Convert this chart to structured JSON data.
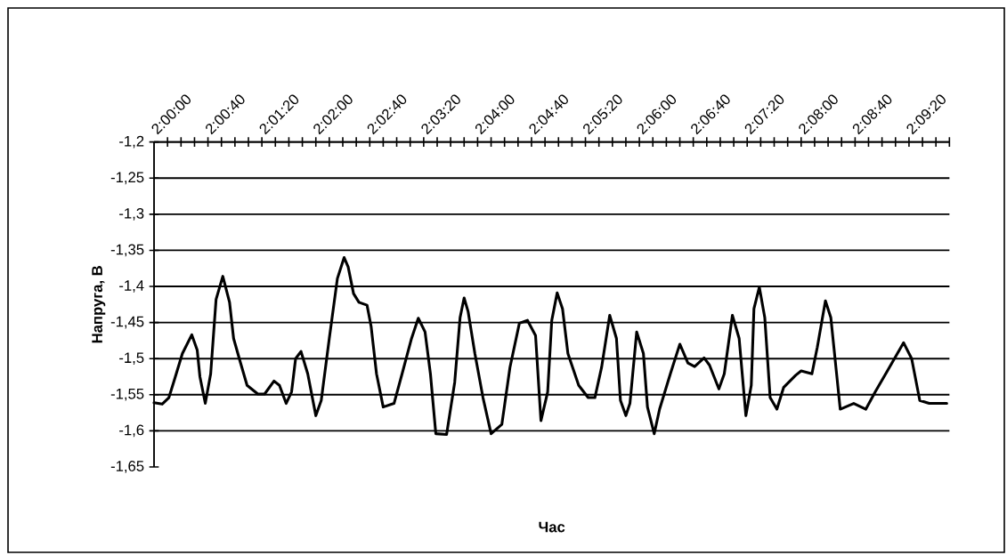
{
  "chart_data": {
    "type": "line",
    "xlabel": "Час",
    "ylabel": "Напруга, В",
    "xlim": [
      1.99722,
      2.16111
    ],
    "ylim": [
      -1.65,
      -1.2
    ],
    "xticks": [
      {
        "value": 2,
        "label": "2:00:00"
      },
      {
        "value": 2.00278,
        "label": null
      },
      {
        "value": 2.00556,
        "label": null
      },
      {
        "value": 2.00833,
        "label": null
      },
      {
        "value": 2.01111,
        "label": "2:00:40"
      },
      {
        "value": 2.01389,
        "label": null
      },
      {
        "value": 2.01667,
        "label": null
      },
      {
        "value": 2.01944,
        "label": null
      },
      {
        "value": 2.02222,
        "label": "2:01:20"
      },
      {
        "value": 2.025,
        "label": null
      },
      {
        "value": 2.02778,
        "label": null
      },
      {
        "value": 2.03056,
        "label": null
      },
      {
        "value": 2.03333,
        "label": "2:02:00"
      },
      {
        "value": 2.03611,
        "label": null
      },
      {
        "value": 2.03889,
        "label": null
      },
      {
        "value": 2.04167,
        "label": null
      },
      {
        "value": 2.04444,
        "label": "2:02:40"
      },
      {
        "value": 2.04722,
        "label": null
      },
      {
        "value": 2.05,
        "label": null
      },
      {
        "value": 2.05278,
        "label": null
      },
      {
        "value": 2.05556,
        "label": "2:03:20"
      },
      {
        "value": 2.05833,
        "label": null
      },
      {
        "value": 2.06111,
        "label": null
      },
      {
        "value": 2.06389,
        "label": null
      },
      {
        "value": 2.06667,
        "label": "2:04:00"
      },
      {
        "value": 2.06944,
        "label": null
      },
      {
        "value": 2.07222,
        "label": null
      },
      {
        "value": 2.075,
        "label": null
      },
      {
        "value": 2.07778,
        "label": "2:04:40"
      },
      {
        "value": 2.08056,
        "label": null
      },
      {
        "value": 2.08333,
        "label": null
      },
      {
        "value": 2.08611,
        "label": null
      },
      {
        "value": 2.08889,
        "label": "2:05:20"
      },
      {
        "value": 2.09167,
        "label": null
      },
      {
        "value": 2.09444,
        "label": null
      },
      {
        "value": 2.09722,
        "label": null
      },
      {
        "value": 2.1,
        "label": "2:06:00"
      },
      {
        "value": 2.10278,
        "label": null
      },
      {
        "value": 2.10556,
        "label": null
      },
      {
        "value": 2.10833,
        "label": null
      },
      {
        "value": 2.11111,
        "label": "2:06:40"
      },
      {
        "value": 2.11389,
        "label": null
      },
      {
        "value": 2.11667,
        "label": null
      },
      {
        "value": 2.11944,
        "label": null
      },
      {
        "value": 2.12222,
        "label": "2:07:20"
      },
      {
        "value": 2.125,
        "label": null
      },
      {
        "value": 2.12778,
        "label": null
      },
      {
        "value": 2.13056,
        "label": null
      },
      {
        "value": 2.13333,
        "label": "2:08:00"
      },
      {
        "value": 2.13611,
        "label": null
      },
      {
        "value": 2.13889,
        "label": null
      },
      {
        "value": 2.14167,
        "label": null
      },
      {
        "value": 2.14444,
        "label": "2:08:40"
      },
      {
        "value": 2.14722,
        "label": null
      },
      {
        "value": 2.15,
        "label": null
      },
      {
        "value": 2.15278,
        "label": null
      },
      {
        "value": 2.15556,
        "label": "2:09:20"
      },
      {
        "value": 2.15833,
        "label": null
      },
      {
        "value": 2.16111,
        "label": null
      }
    ],
    "yticks": [
      {
        "value": -1.2,
        "label": "-1,2"
      },
      {
        "value": -1.25,
        "label": "-1,25"
      },
      {
        "value": -1.3,
        "label": "-1,3"
      },
      {
        "value": -1.35,
        "label": "-1,35"
      },
      {
        "value": -1.4,
        "label": "-1,4"
      },
      {
        "value": -1.45,
        "label": "-1,45"
      },
      {
        "value": -1.5,
        "label": "-1,5"
      },
      {
        "value": -1.55,
        "label": "-1,55"
      },
      {
        "value": -1.6,
        "label": "-1,6"
      },
      {
        "value": -1.65,
        "label": "-1,65"
      }
    ],
    "grid": "y",
    "marker": "none",
    "line_style": "solid",
    "x": [
      1.99722,
      1.99889,
      2.00028,
      2.00139,
      2.00306,
      2.005,
      2.00611,
      2.00667,
      2.00778,
      2.00889,
      2.01,
      2.01139,
      2.01278,
      2.01361,
      2.015,
      2.01639,
      2.01861,
      2.02,
      2.02194,
      2.02306,
      2.02444,
      2.02556,
      2.02639,
      2.0275,
      2.02889,
      2.03056,
      2.03167,
      2.03333,
      2.035,
      2.03639,
      2.03722,
      2.03833,
      2.03944,
      2.04111,
      2.04194,
      2.04306,
      2.04444,
      2.04667,
      2.04833,
      2.05028,
      2.05167,
      2.05306,
      2.05417,
      2.05528,
      2.0575,
      2.05917,
      2.06028,
      2.06111,
      2.06194,
      2.06333,
      2.065,
      2.06667,
      2.06889,
      2.07056,
      2.0725,
      2.07417,
      2.07583,
      2.07694,
      2.07833,
      2.07917,
      2.08028,
      2.08139,
      2.0825,
      2.08472,
      2.08667,
      2.08806,
      2.08944,
      2.09111,
      2.0925,
      2.09333,
      2.09444,
      2.09528,
      2.09667,
      2.09806,
      2.09889,
      2.10028,
      2.10139,
      2.10361,
      2.10556,
      2.10722,
      2.10861,
      2.11056,
      2.11167,
      2.11361,
      2.11472,
      2.11639,
      2.11778,
      2.11917,
      2.12028,
      2.12083,
      2.12194,
      2.12306,
      2.12417,
      2.12556,
      2.12694,
      2.12944,
      2.13056,
      2.13278,
      2.13389,
      2.13556,
      2.13667,
      2.13861,
      2.14139,
      2.14389,
      2.14583,
      2.14833,
      2.15167,
      2.15333,
      2.155,
      2.15694,
      2.16056
    ],
    "series": [
      {
        "color": "#000000",
        "values": [
          -1.561,
          -1.563,
          -1.554,
          -1.53,
          -1.493,
          -1.467,
          -1.488,
          -1.525,
          -1.562,
          -1.521,
          -1.418,
          -1.386,
          -1.422,
          -1.472,
          -1.505,
          -1.537,
          -1.549,
          -1.549,
          -1.531,
          -1.537,
          -1.562,
          -1.546,
          -1.5,
          -1.49,
          -1.521,
          -1.579,
          -1.558,
          -1.472,
          -1.389,
          -1.36,
          -1.373,
          -1.41,
          -1.422,
          -1.426,
          -1.455,
          -1.521,
          -1.567,
          -1.562,
          -1.521,
          -1.472,
          -1.444,
          -1.463,
          -1.521,
          -1.604,
          -1.605,
          -1.533,
          -1.443,
          -1.416,
          -1.435,
          -1.493,
          -1.554,
          -1.604,
          -1.591,
          -1.512,
          -1.451,
          -1.447,
          -1.468,
          -1.586,
          -1.546,
          -1.447,
          -1.409,
          -1.431,
          -1.493,
          -1.537,
          -1.554,
          -1.554,
          -1.512,
          -1.44,
          -1.472,
          -1.558,
          -1.579,
          -1.562,
          -1.463,
          -1.493,
          -1.567,
          -1.604,
          -1.57,
          -1.521,
          -1.48,
          -1.506,
          -1.511,
          -1.499,
          -1.509,
          -1.542,
          -1.521,
          -1.44,
          -1.472,
          -1.579,
          -1.537,
          -1.431,
          -1.401,
          -1.443,
          -1.554,
          -1.57,
          -1.54,
          -1.523,
          -1.517,
          -1.521,
          -1.484,
          -1.42,
          -1.443,
          -1.57,
          -1.562,
          -1.57,
          -1.546,
          -1.517,
          -1.478,
          -1.5,
          -1.558,
          -1.562,
          -1.562
        ]
      }
    ]
  }
}
